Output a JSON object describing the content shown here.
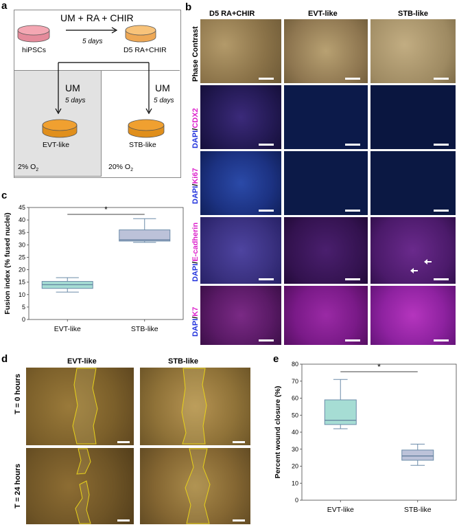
{
  "panel_labels": {
    "a": "a",
    "b": "b",
    "c": "c",
    "d": "d",
    "e": "e"
  },
  "panel_a": {
    "top_condition": "UM + RA + CHIR",
    "top_duration": "5 days",
    "start_label": "hiPSCs",
    "middle_label": "D5 RA+CHIR",
    "left_medium": "UM",
    "left_duration": "5 days",
    "right_medium": "UM",
    "right_duration": "5 days",
    "left_result": "EVT-like",
    "right_result": "STB-like",
    "left_oxygen": "2% O",
    "left_oxygen_sub": "2",
    "right_oxygen": "20% O",
    "right_oxygen_sub": "2",
    "colors": {
      "pink_dish": "#f4a7b3",
      "light_orange_dish": "#f8c37a",
      "orange_dish": "#f0a030",
      "hypoxia_box": "#e2e2e2"
    }
  },
  "panel_b": {
    "columns": [
      "D5 RA+CHIR",
      "EVT-like",
      "STB-like"
    ],
    "rows": [
      {
        "label": "Phase Contrast",
        "parts": [
          {
            "t": "Phase Contrast",
            "c": "#000000"
          }
        ]
      },
      {
        "label": "DAPI/CDX2",
        "parts": [
          {
            "t": "DAPI",
            "c": "#2233dd"
          },
          {
            "t": "/",
            "c": "#000000"
          },
          {
            "t": "CDX2",
            "c": "#dd22cc"
          }
        ]
      },
      {
        "label": "DAPI/Ki67",
        "parts": [
          {
            "t": "DAPI",
            "c": "#2233dd"
          },
          {
            "t": "/",
            "c": "#000000"
          },
          {
            "t": "Ki67",
            "c": "#dd22cc"
          }
        ]
      },
      {
        "label": "DAPI/E-cadherin",
        "parts": [
          {
            "t": "DAPI",
            "c": "#2233dd"
          },
          {
            "t": "/",
            "c": "#000000"
          },
          {
            "t": "E-cadherin",
            "c": "#dd22cc"
          }
        ]
      },
      {
        "label": "DAPI/K7",
        "parts": [
          {
            "t": "DAPI",
            "c": "#2233dd"
          },
          {
            "t": "/",
            "c": "#000000"
          },
          {
            "t": "K7",
            "c": "#dd22cc"
          }
        ]
      }
    ]
  },
  "panel_d": {
    "columns": [
      "EVT-like",
      "STB-like"
    ],
    "rows": [
      "T = 0 hours",
      "T = 24 hours"
    ],
    "outline_color": "#e8d21a"
  },
  "chart_data": [
    {
      "panel": "c",
      "type": "box",
      "ylabel": "Fusion index (% fused nuclei)",
      "categories": [
        "EVT-like",
        "STB-like"
      ],
      "ylim": [
        0,
        45
      ],
      "yticks": [
        0,
        5,
        10,
        15,
        20,
        25,
        30,
        35,
        40,
        45
      ],
      "boxes": [
        {
          "name": "EVT-like",
          "min": 11,
          "q1": 12.5,
          "median": 14,
          "q3": 15.3,
          "max": 16.8,
          "color": "#a6ddd4"
        },
        {
          "name": "STB-like",
          "min": 31,
          "q1": 31.5,
          "median": 32,
          "q3": 36,
          "max": 40.5,
          "color": "#bcc2d9"
        }
      ],
      "significance": "*"
    },
    {
      "panel": "e",
      "type": "box",
      "ylabel": "Percent wound closure (%)",
      "categories": [
        "EVT-like",
        "STB-like"
      ],
      "ylim": [
        0,
        80
      ],
      "yticks": [
        0,
        10,
        20,
        30,
        40,
        50,
        60,
        70,
        80
      ],
      "boxes": [
        {
          "name": "EVT-like",
          "min": 42,
          "q1": 44.5,
          "median": 47,
          "q3": 59,
          "max": 71,
          "color": "#a6ddd4"
        },
        {
          "name": "STB-like",
          "min": 20.5,
          "q1": 23.5,
          "median": 26,
          "q3": 29.5,
          "max": 33,
          "color": "#bcc2d9"
        }
      ],
      "significance": "*"
    }
  ]
}
